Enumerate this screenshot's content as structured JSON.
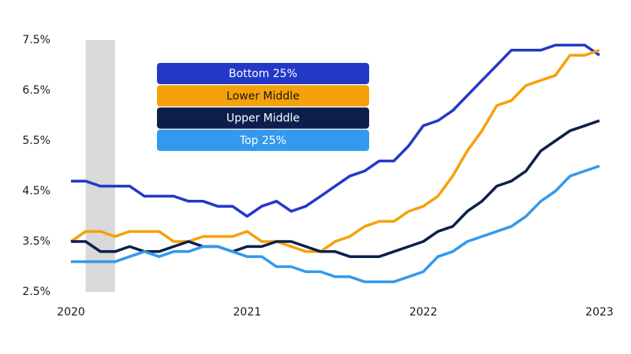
{
  "chart_data": {
    "type": "line",
    "x": [
      2020,
      2020.083,
      2020.167,
      2020.25,
      2020.333,
      2020.417,
      2020.5,
      2020.583,
      2020.667,
      2020.75,
      2020.833,
      2020.917,
      2021,
      2021.083,
      2021.167,
      2021.25,
      2021.333,
      2021.417,
      2021.5,
      2021.583,
      2021.667,
      2021.75,
      2021.833,
      2021.917,
      2022,
      2022.083,
      2022.167,
      2022.25,
      2022.333,
      2022.417,
      2022.5,
      2022.583,
      2022.667,
      2022.75,
      2022.833,
      2022.917,
      2023
    ],
    "xlim": [
      2020,
      2023
    ],
    "xticks": [
      2020,
      2021,
      2022,
      2023
    ],
    "ylim": [
      2.5,
      7.5
    ],
    "yticks": [
      {
        "value": 2.5,
        "label": "2.5%"
      },
      {
        "value": 3.5,
        "label": "3.5%"
      },
      {
        "value": 4.5,
        "label": "4.5%"
      },
      {
        "value": 5.5,
        "label": "5.5%"
      },
      {
        "value": 6.5,
        "label": "6.5%"
      },
      {
        "value": 7.5,
        "label": "7.5%"
      }
    ],
    "grid": false,
    "shaded_region": [
      2020.083,
      2020.25
    ],
    "series": [
      {
        "name": "Bottom 25%",
        "color": "#2438c8",
        "values": [
          4.7,
          4.7,
          4.6,
          4.6,
          4.6,
          4.4,
          4.4,
          4.4,
          4.3,
          4.3,
          4.2,
          4.2,
          4.0,
          4.2,
          4.3,
          4.1,
          4.2,
          4.4,
          4.6,
          4.8,
          4.9,
          5.1,
          5.1,
          5.4,
          5.8,
          5.9,
          6.1,
          6.4,
          6.7,
          7.0,
          7.3,
          7.3,
          7.3,
          7.4,
          7.4,
          7.4,
          7.2
        ]
      },
      {
        "name": "Lower Middle",
        "color": "#f5a10a",
        "values": [
          3.5,
          3.7,
          3.7,
          3.6,
          3.7,
          3.7,
          3.7,
          3.5,
          3.5,
          3.6,
          3.6,
          3.6,
          3.7,
          3.5,
          3.5,
          3.4,
          3.3,
          3.3,
          3.5,
          3.6,
          3.8,
          3.9,
          3.9,
          4.1,
          4.2,
          4.4,
          4.8,
          5.3,
          5.7,
          6.2,
          6.3,
          6.6,
          6.7,
          6.8,
          7.2,
          7.2,
          7.3
        ]
      },
      {
        "name": "Upper Middle",
        "color": "#0c1f4c",
        "values": [
          3.5,
          3.5,
          3.3,
          3.3,
          3.4,
          3.3,
          3.3,
          3.4,
          3.5,
          3.4,
          3.4,
          3.3,
          3.4,
          3.4,
          3.5,
          3.5,
          3.4,
          3.3,
          3.3,
          3.2,
          3.2,
          3.2,
          3.3,
          3.4,
          3.5,
          3.7,
          3.8,
          4.1,
          4.3,
          4.6,
          4.7,
          4.9,
          5.3,
          5.5,
          5.7,
          5.8,
          5.9
        ]
      },
      {
        "name": "Top 25%",
        "color": "#3399ee",
        "values": [
          3.1,
          3.1,
          3.1,
          3.1,
          3.2,
          3.3,
          3.2,
          3.3,
          3.3,
          3.4,
          3.4,
          3.3,
          3.2,
          3.2,
          3.0,
          3.0,
          2.9,
          2.9,
          2.8,
          2.8,
          2.7,
          2.7,
          2.7,
          2.8,
          2.9,
          3.2,
          3.3,
          3.5,
          3.6,
          3.7,
          3.8,
          4.0,
          4.3,
          4.5,
          4.8,
          4.9,
          5.0
        ]
      }
    ]
  }
}
